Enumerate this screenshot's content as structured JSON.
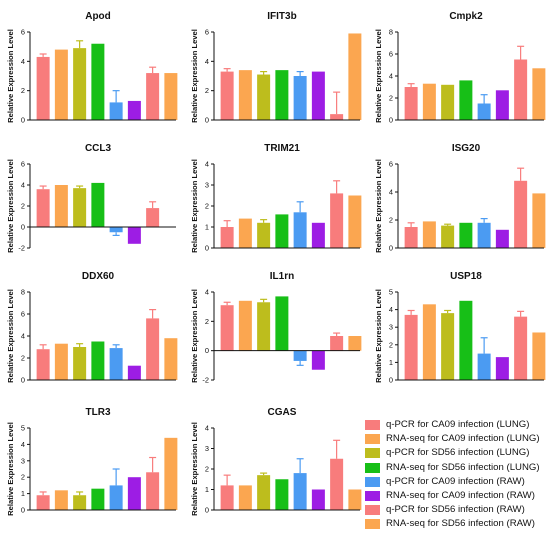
{
  "figure": {
    "ylabel": "Relative Expression Level"
  },
  "legend": [
    {
      "label": "q-PCR for CA09 infection (LUNG)",
      "color": "#f87c7c"
    },
    {
      "label": "RNA-seq for CA09 infection (LUNG)",
      "color": "#fba650"
    },
    {
      "label": "q-PCR for SD56 infection (LUNG)",
      "color": "#bdbd1d"
    },
    {
      "label": "RNA-seq for SD56 infection (LUNG)",
      "color": "#17bf17"
    },
    {
      "label": "q-PCR for CA09 infection (RAW)",
      "color": "#4b9bf2"
    },
    {
      "label": "RNA-seq for CA09 infection (RAW)",
      "color": "#9d1de4"
    },
    {
      "label": "q-PCR for SD56 infection (RAW)",
      "color": "#f87c7c"
    },
    {
      "label": "RNA-seq for SD56 infection (RAW)",
      "color": "#fba650"
    }
  ],
  "chart_data": [
    {
      "type": "bar",
      "title": "Apod",
      "ylabel": "Relative Expression Level",
      "ylim": [
        0,
        6
      ],
      "yticks": [
        0,
        2,
        4,
        6
      ],
      "values": [
        4.3,
        4.8,
        4.9,
        5.2,
        1.2,
        1.3,
        3.2,
        3.2
      ],
      "errors": [
        0.2,
        0,
        0.5,
        0,
        0.8,
        0,
        0.4,
        0
      ]
    },
    {
      "type": "bar",
      "title": "IFIT3b",
      "ylabel": "Relative Expression Level",
      "ylim": [
        0,
        6
      ],
      "yticks": [
        0,
        2,
        4,
        6
      ],
      "values": [
        3.3,
        3.4,
        3.1,
        3.4,
        3.0,
        3.3,
        0.4,
        5.9
      ],
      "errors": [
        0.2,
        0,
        0.2,
        0,
        0.3,
        0,
        1.5,
        0
      ]
    },
    {
      "type": "bar",
      "title": "Cmpk2",
      "ylabel": "Relative Expression Level",
      "ylim": [
        0,
        8
      ],
      "yticks": [
        0,
        2,
        4,
        6,
        8
      ],
      "values": [
        3.0,
        3.3,
        3.2,
        3.6,
        1.5,
        2.7,
        5.5,
        4.7
      ],
      "errors": [
        0.3,
        0,
        0,
        0,
        0.8,
        0,
        1.2,
        0
      ]
    },
    {
      "type": "bar",
      "title": "CCL3",
      "ylabel": "Relative Expression Level",
      "ylim": [
        -2,
        6
      ],
      "yticks": [
        -2,
        0,
        2,
        4,
        6
      ],
      "values": [
        3.6,
        4.0,
        3.7,
        4.2,
        -0.5,
        -1.6,
        1.8,
        0
      ],
      "errors": [
        0.3,
        0,
        0.2,
        0,
        0.3,
        0,
        0.6,
        0
      ]
    },
    {
      "type": "bar",
      "title": "TRIM21",
      "ylabel": "Relative Expression Level",
      "ylim": [
        0,
        4
      ],
      "yticks": [
        0,
        1,
        2,
        3,
        4
      ],
      "values": [
        1.0,
        1.4,
        1.2,
        1.6,
        1.7,
        1.2,
        2.6,
        2.5
      ],
      "errors": [
        0.3,
        0,
        0.15,
        0,
        0.5,
        0,
        0.6,
        0
      ]
    },
    {
      "type": "bar",
      "title": "ISG20",
      "ylabel": "Relative Expression Level",
      "ylim": [
        0,
        6
      ],
      "yticks": [
        0,
        2,
        4,
        6
      ],
      "values": [
        1.5,
        1.9,
        1.6,
        1.8,
        1.8,
        1.3,
        4.8,
        3.9
      ],
      "errors": [
        0.3,
        0,
        0.1,
        0,
        0.3,
        0,
        0.9,
        0
      ]
    },
    {
      "type": "bar",
      "title": "DDX60",
      "ylabel": "Relative Expression Level",
      "ylim": [
        0,
        8
      ],
      "yticks": [
        0,
        2,
        4,
        6,
        8
      ],
      "values": [
        2.8,
        3.3,
        3.0,
        3.5,
        2.9,
        1.3,
        5.6,
        3.8
      ],
      "errors": [
        0.4,
        0,
        0.3,
        0,
        0.3,
        0,
        0.8,
        0
      ]
    },
    {
      "type": "bar",
      "title": "IL1rn",
      "ylabel": "Relative Expression Level",
      "ylim": [
        -2,
        4
      ],
      "yticks": [
        -2,
        0,
        2,
        4
      ],
      "values": [
        3.1,
        3.4,
        3.3,
        3.7,
        -0.7,
        -1.3,
        1.0,
        1.0
      ],
      "errors": [
        0.2,
        0,
        0.2,
        0,
        0.3,
        0,
        0.2,
        0
      ]
    },
    {
      "type": "bar",
      "title": "USP18",
      "ylabel": "Relative Expression Level",
      "ylim": [
        0,
        5
      ],
      "yticks": [
        0,
        1,
        2,
        3,
        4,
        5
      ],
      "values": [
        3.7,
        4.3,
        3.8,
        4.5,
        1.5,
        1.3,
        3.6,
        2.7
      ],
      "errors": [
        0.25,
        0,
        0.15,
        0,
        0.9,
        0,
        0.3,
        0
      ]
    },
    {
      "type": "bar",
      "title": "TLR3",
      "ylabel": "Relative Expression Level",
      "ylim": [
        0,
        5
      ],
      "yticks": [
        0,
        1,
        2,
        3,
        4,
        5
      ],
      "values": [
        0.9,
        1.2,
        0.9,
        1.3,
        1.5,
        2.0,
        2.3,
        4.4
      ],
      "errors": [
        0.2,
        0,
        0.2,
        0,
        1.0,
        0,
        0.9,
        0
      ]
    },
    {
      "type": "bar",
      "title": "CGAS",
      "ylabel": "Relative Expression Level",
      "ylim": [
        0,
        4
      ],
      "yticks": [
        0,
        1,
        2,
        3,
        4
      ],
      "values": [
        1.2,
        1.2,
        1.7,
        1.5,
        1.8,
        1.0,
        2.5,
        1.0
      ],
      "errors": [
        0.5,
        0,
        0.1,
        0,
        0.7,
        0,
        0.9,
        0
      ]
    }
  ]
}
